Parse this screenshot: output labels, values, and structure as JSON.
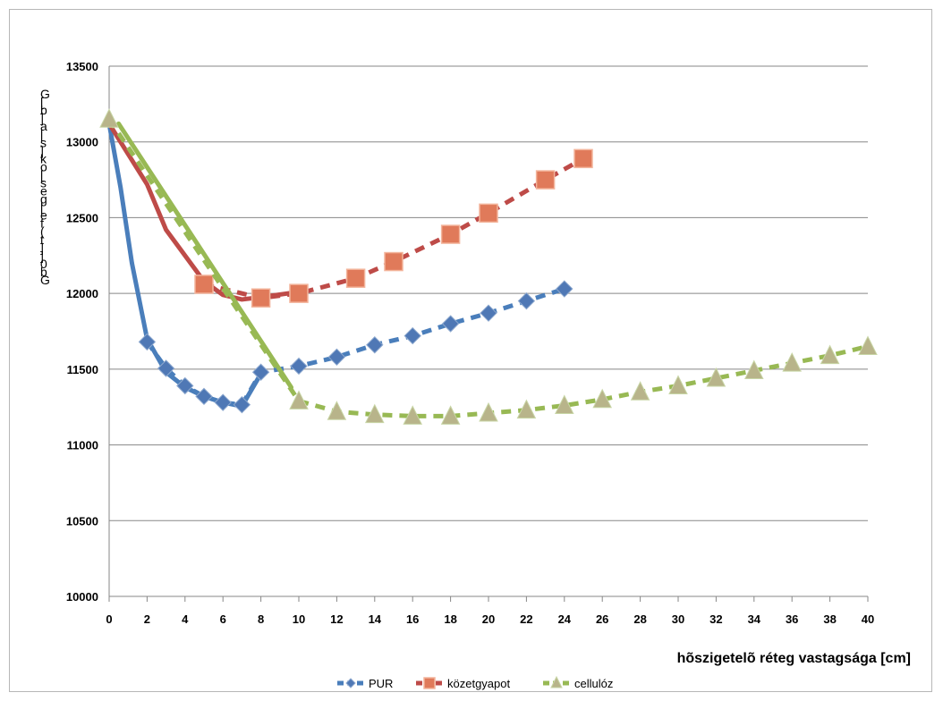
{
  "chart_data": {
    "type": "line",
    "xlabel": "hõszigetelõ réteg vastagsága [cm]",
    "ylabel": "Gb0]]t(fe[ges[ok]s[a]b[G",
    "xlim": [
      0,
      40
    ],
    "ylim": [
      10000,
      13500
    ],
    "x_ticks": [
      "0",
      "2",
      "4",
      "6",
      "8",
      "10",
      "12",
      "14",
      "16",
      "18",
      "20",
      "22",
      "24",
      "26",
      "28",
      "30",
      "32",
      "34",
      "36",
      "38",
      "40"
    ],
    "y_ticks": [
      "10000",
      "10500",
      "11000",
      "11500",
      "12000",
      "12500",
      "13000",
      "13500"
    ],
    "grid": "horizontal",
    "legend_position": "bottom",
    "series": [
      {
        "name": "PUR",
        "color": "#4a7ebb",
        "marker": "diamond",
        "trend": [
          [
            0,
            13120
          ],
          [
            0.6,
            12700
          ],
          [
            1.2,
            12200
          ],
          [
            2,
            11700
          ],
          [
            3,
            11480
          ],
          [
            4,
            11380
          ],
          [
            5,
            11320
          ],
          [
            6,
            11280
          ],
          [
            7,
            11255
          ],
          [
            8,
            11470
          ]
        ],
        "x": [
          2,
          3,
          4,
          5,
          6,
          7,
          8,
          10,
          12,
          14,
          16,
          18,
          20,
          22,
          24
        ],
        "y": [
          11680,
          11505,
          11390,
          11320,
          11280,
          11265,
          11480,
          11520,
          11580,
          11660,
          11720,
          11800,
          11870,
          11950,
          12030
        ]
      },
      {
        "name": "közetgyapot",
        "color": "#be4b48",
        "marker": "square",
        "trend": [
          [
            0,
            13120
          ],
          [
            2,
            12720
          ],
          [
            3,
            12420
          ],
          [
            5,
            12080
          ],
          [
            6,
            11990
          ],
          [
            7,
            11960
          ],
          [
            8,
            11975
          ],
          [
            10,
            12010
          ]
        ],
        "x": [
          5,
          8,
          10,
          13,
          15,
          18,
          20,
          23,
          25
        ],
        "y": [
          12060,
          11970,
          12000,
          12100,
          12210,
          12390,
          12530,
          12750,
          12890
        ]
      },
      {
        "name": "cellulóz",
        "color": "#98b954",
        "marker": "triangle",
        "trend": [
          [
            0.5,
            13120
          ],
          [
            9.6,
            11380
          ]
        ],
        "x": [
          0,
          10,
          12,
          14,
          16,
          18,
          20,
          22,
          24,
          26,
          28,
          30,
          32,
          34,
          36,
          38,
          40
        ],
        "y": [
          13150,
          11290,
          11220,
          11200,
          11190,
          11190,
          11210,
          11230,
          11260,
          11300,
          11350,
          11390,
          11440,
          11490,
          11540,
          11590,
          11650
        ]
      }
    ]
  }
}
